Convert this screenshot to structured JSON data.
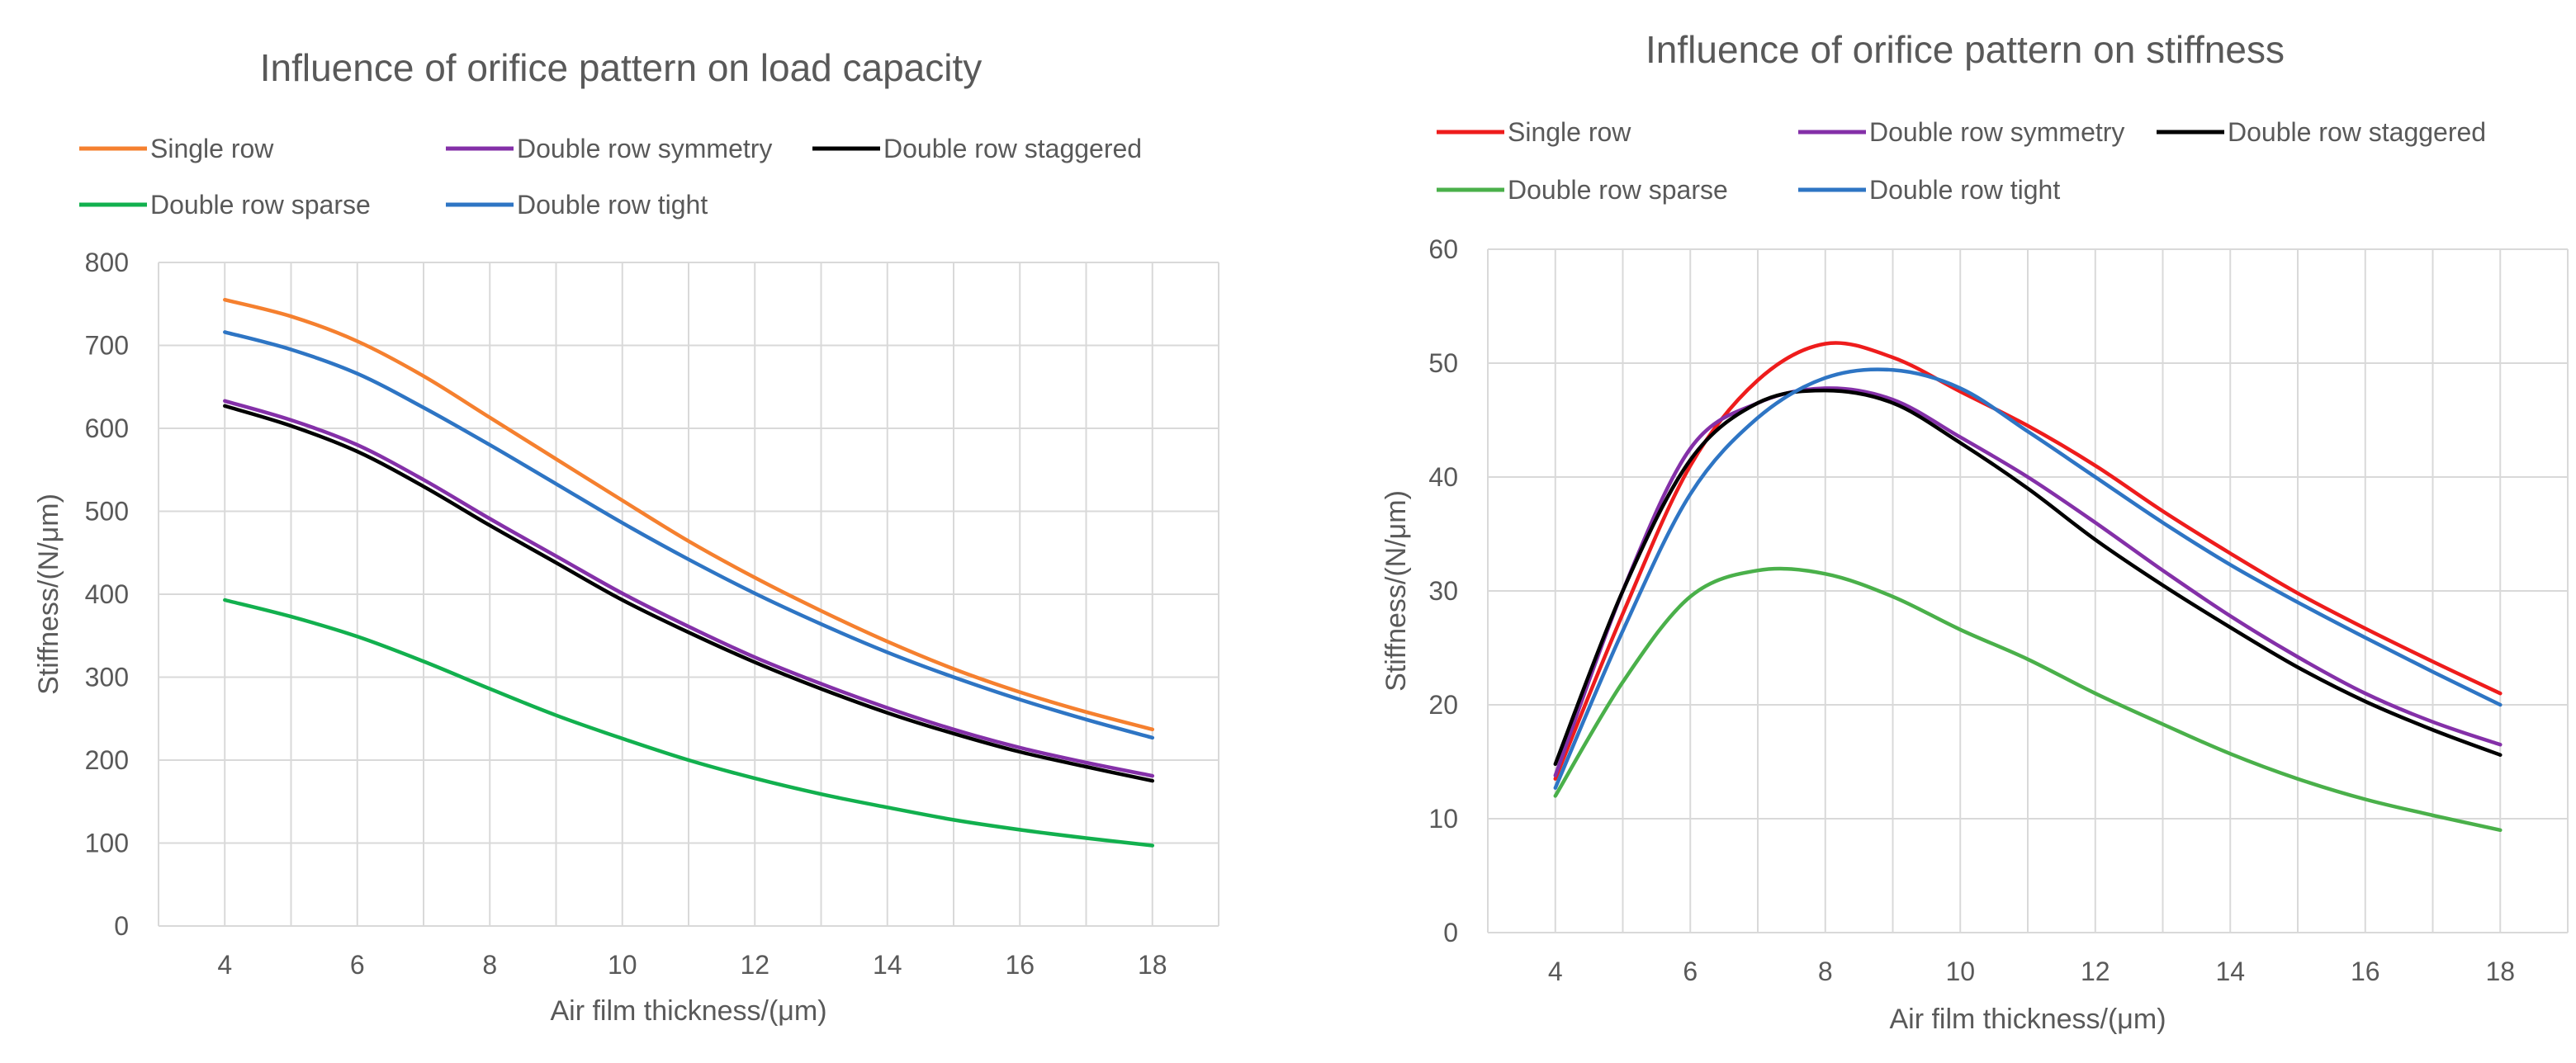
{
  "chart_data": [
    {
      "type": "line",
      "title": "Influence of orifice pattern on load capacity",
      "xlabel": "Air film thickness/(μm)",
      "ylabel": "Stiffness/(N/μm)",
      "xlim": [
        3,
        19
      ],
      "ylim": [
        0,
        800
      ],
      "xticks": [
        4,
        6,
        8,
        10,
        12,
        14,
        16,
        18
      ],
      "yticks": [
        0,
        100,
        200,
        300,
        400,
        500,
        600,
        700,
        800
      ],
      "grid": true,
      "legend_position": "top",
      "x": [
        4,
        5,
        6,
        7,
        8,
        9,
        10,
        11,
        12,
        13,
        14,
        15,
        16,
        17,
        18
      ],
      "series": [
        {
          "name": "Single row",
          "color": "#f5802f",
          "values": [
            755,
            735,
            705,
            663,
            613,
            563,
            513,
            464,
            420,
            380,
            343,
            310,
            282,
            258,
            237
          ]
        },
        {
          "name": "Double row symmetry",
          "color": "#8430a8",
          "values": [
            633,
            610,
            580,
            538,
            491,
            446,
            401,
            361,
            324,
            292,
            263,
            237,
            215,
            197,
            181
          ]
        },
        {
          "name": "Double row staggered",
          "color": "#000000",
          "values": [
            627,
            603,
            572,
            530,
            483,
            438,
            393,
            354,
            318,
            286,
            257,
            232,
            210,
            192,
            175
          ]
        },
        {
          "name": "Double row sparse",
          "color": "#12b04e",
          "values": [
            393,
            373,
            349,
            319,
            286,
            254,
            226,
            200,
            178,
            159,
            143,
            128,
            116,
            106,
            97
          ]
        },
        {
          "name": "Double row tight",
          "color": "#2e75c4",
          "values": [
            716,
            695,
            666,
            625,
            580,
            533,
            486,
            442,
            401,
            364,
            330,
            300,
            273,
            249,
            227
          ]
        }
      ]
    },
    {
      "type": "line",
      "title": "Influence of orifice pattern on stiffness",
      "xlabel": "Air film thickness/(μm)",
      "ylabel": "Stiffness/(N/μm)",
      "xlim": [
        3,
        19
      ],
      "ylim": [
        0,
        60
      ],
      "xticks": [
        4,
        6,
        8,
        10,
        12,
        14,
        16,
        18
      ],
      "yticks": [
        0,
        10,
        20,
        30,
        40,
        50,
        60
      ],
      "grid": true,
      "legend_position": "top",
      "x": [
        4,
        5,
        6,
        7,
        8,
        9,
        10,
        11,
        12,
        13,
        14,
        15,
        16,
        17,
        18
      ],
      "series": [
        {
          "name": "Single row",
          "color": "#ee1c1c",
          "values": [
            13.5,
            28,
            41,
            48.5,
            51.7,
            50.5,
            47.5,
            44.5,
            41,
            37,
            33.3,
            29.8,
            26.7,
            23.8,
            21
          ]
        },
        {
          "name": "Double row symmetry",
          "color": "#8430a8",
          "values": [
            13.8,
            30,
            42.5,
            46.5,
            47.8,
            46.8,
            43.5,
            40,
            36,
            31.8,
            27.8,
            24.2,
            21,
            18.5,
            16.5
          ]
        },
        {
          "name": "Double row staggered",
          "color": "#000000",
          "values": [
            14.8,
            30,
            41.5,
            46.5,
            47.6,
            46.5,
            43,
            39,
            34.5,
            30.5,
            26.8,
            23.3,
            20.3,
            17.8,
            15.6
          ]
        },
        {
          "name": "Double row sparse",
          "color": "#4ab04a",
          "values": [
            12,
            22,
            29.5,
            31.8,
            31.5,
            29.5,
            26.6,
            24,
            21,
            18.3,
            15.7,
            13.5,
            11.7,
            10.3,
            9
          ]
        },
        {
          "name": "Double row tight",
          "color": "#2e75c4",
          "values": [
            12.7,
            26.5,
            38.5,
            45.2,
            48.7,
            49.4,
            47.8,
            44,
            40,
            36,
            32.3,
            29,
            25.9,
            22.9,
            20
          ]
        }
      ]
    }
  ]
}
